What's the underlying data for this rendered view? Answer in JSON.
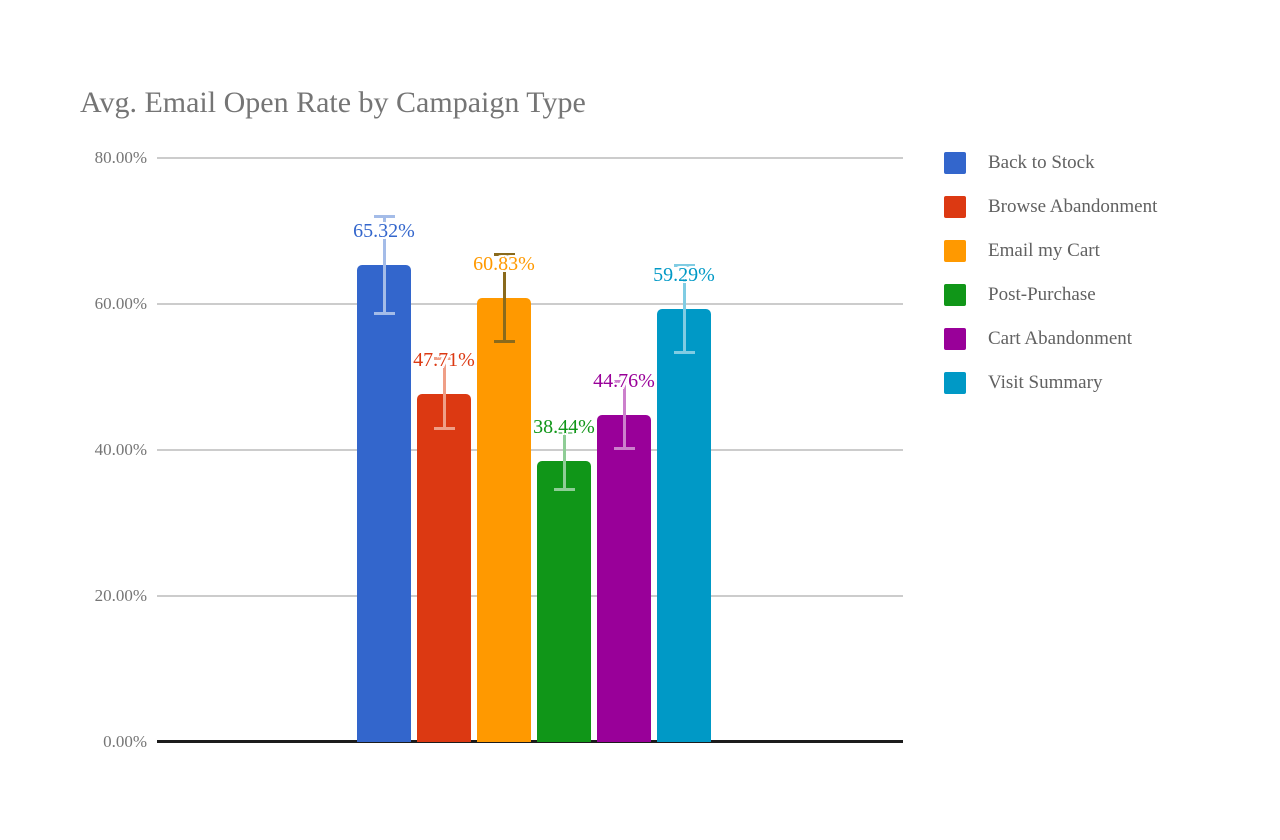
{
  "chart_data": {
    "type": "bar",
    "title": "Avg. Email Open Rate by Campaign Type",
    "categories": [
      "Back to Stock",
      "Browse Abandonment",
      "Email my Cart",
      "Post-Purchase",
      "Cart Abandonment",
      "Visit Summary"
    ],
    "values": [
      65.32,
      47.71,
      60.83,
      38.44,
      44.76,
      59.29
    ],
    "data_labels": [
      "65.32%",
      "47.71%",
      "60.83%",
      "38.44%",
      "44.76%",
      "59.29%"
    ],
    "error_bars_percent": [
      6.6,
      4.8,
      6.0,
      3.9,
      4.6,
      6.0
    ],
    "colors": [
      "#3366CC",
      "#DC3912",
      "#FF9900",
      "#109618",
      "#990099",
      "#0099C6"
    ],
    "error_bar_colors": [
      "#A4BCE8",
      "#EF9F87",
      "#8A6A1C",
      "#8FCD96",
      "#CC80CC",
      "#80CCE3"
    ],
    "xlabel": "",
    "ylabel": "",
    "ylim": [
      0,
      80
    ],
    "y_ticks": [
      "80.00%",
      "60.00%",
      "40.00%",
      "20.00%",
      "0.00%"
    ],
    "y_tick_values": [
      80,
      60,
      40,
      20,
      0
    ],
    "grid": true,
    "legend_position": "right",
    "title_color": "#757575",
    "axis_label_color": "#757575",
    "legend_text_color": "#616161",
    "gridline_color": "#cccccc",
    "baseline_color": "#1c1c1c"
  }
}
